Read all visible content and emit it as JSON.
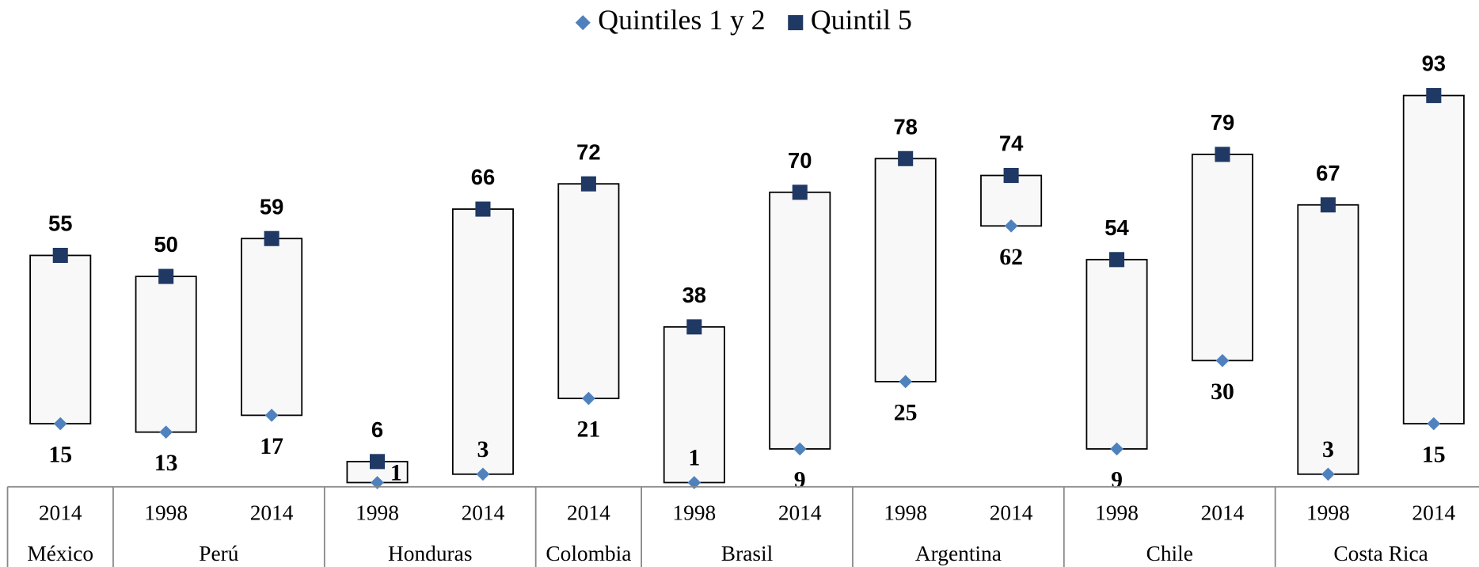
{
  "chart_data": {
    "type": "high-low",
    "categories": [
      "2014",
      "1998",
      "2014",
      "1998",
      "2014",
      "2014",
      "1998",
      "2014",
      "1998",
      "2014",
      "1998",
      "2014",
      "1998",
      "2014"
    ],
    "group_labels": [
      "México",
      "Perú",
      null,
      "Honduras",
      null,
      "Colombia",
      "Brasil",
      null,
      "Argentina",
      null,
      "Chile",
      null,
      "Costa Rica",
      null
    ],
    "series": [
      {
        "name": "Quintiles 1 y 2",
        "color": "#4f81bd",
        "marker": "diamond",
        "values": [
          15,
          13,
          17,
          1,
          3,
          21,
          1,
          9,
          25,
          62,
          9,
          30,
          3,
          15
        ]
      },
      {
        "name": "Quintil 5",
        "color": "#1f3864",
        "marker": "square",
        "values": [
          55,
          50,
          59,
          6,
          66,
          72,
          38,
          70,
          78,
          74,
          54,
          79,
          67,
          93
        ]
      }
    ],
    "ylim": [
      0,
      100
    ],
    "legend": "top"
  }
}
